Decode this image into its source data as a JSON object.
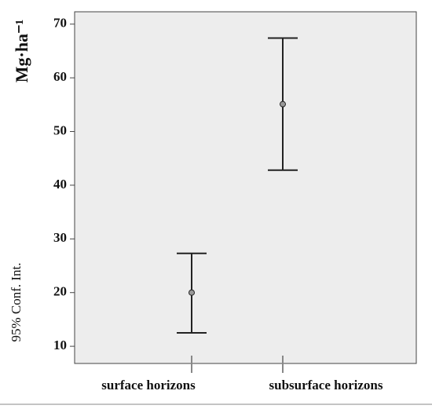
{
  "chart_data": {
    "type": "errorbar",
    "y_label": "Mg·ha⁻¹",
    "y_label_secondary": "95% Conf. Int.",
    "categories": [
      "surface horizons",
      "subsurface horizons"
    ],
    "values": [
      20,
      55.1
    ],
    "lower": [
      12.5,
      42.8
    ],
    "upper": [
      27.3,
      67.4
    ],
    "color": "#222222",
    "marker_color": "#999999",
    "background": "#ededed",
    "ylim": [
      6.8,
      72.3
    ],
    "yticks": [
      10,
      20,
      30,
      40,
      50,
      60,
      70
    ]
  }
}
